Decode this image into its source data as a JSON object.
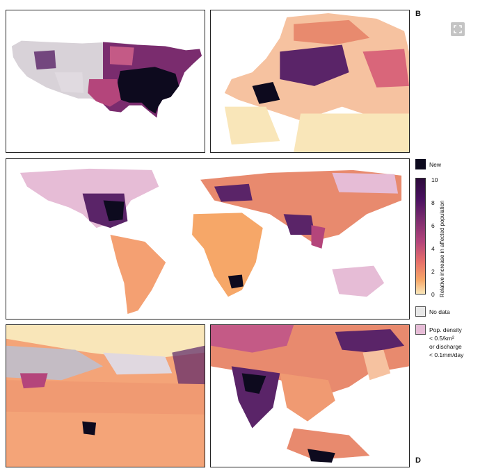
{
  "panel_labels": {
    "top_right": "B",
    "bottom_right": "D"
  },
  "legend": {
    "new_label": "New",
    "colorbar_title": "Relative increase in affected population",
    "ticks": [
      "10",
      "8",
      "6",
      "4",
      "2",
      "0"
    ],
    "no_data_label": "No data",
    "pop_density_line1": "Pop. density",
    "pop_density_line2": "< 0.5/km²",
    "pop_density_line3": "or discharge",
    "pop_density_line4": "< 0.1mm/day"
  },
  "colors": {
    "new": "#0d0a1e",
    "scale_high": "#4a1160",
    "scale_mid": "#b4457b",
    "scale_low": "#f6a768",
    "scale_zero": "#f9e6b9",
    "no_data": "#e8e8e8",
    "low_density": "#e6bcd6"
  },
  "icons": {
    "expand": "expand-icon"
  }
}
